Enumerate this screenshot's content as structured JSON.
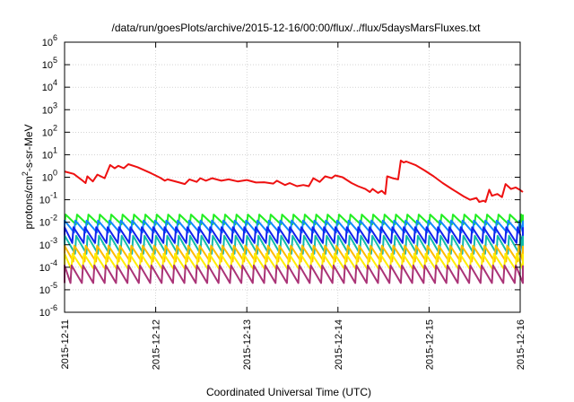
{
  "chart_data": {
    "type": "line",
    "title": "/data/run/goesPlots/archive/2015-12-16/00:00/flux/../flux/5daysMarsFluxes.txt",
    "xlabel": "Coordinated Universal Time (UTC)",
    "ylabel_base": "protons/cm",
    "ylabel_sup": "2",
    "ylabel_rest": "-s-sr-MeV",
    "y_scale": "log",
    "ylim": [
      1e-06,
      1000000.0
    ],
    "y_ticks": [
      {
        "base": "10",
        "exp": "-6"
      },
      {
        "base": "10",
        "exp": "-5"
      },
      {
        "base": "10",
        "exp": "-4"
      },
      {
        "base": "10",
        "exp": "-3"
      },
      {
        "base": "10",
        "exp": "-2"
      },
      {
        "base": "10",
        "exp": "-1"
      },
      {
        "base": "10",
        "exp": "0"
      },
      {
        "base": "10",
        "exp": "1"
      },
      {
        "base": "10",
        "exp": "2"
      },
      {
        "base": "10",
        "exp": "3"
      },
      {
        "base": "10",
        "exp": "4"
      },
      {
        "base": "10",
        "exp": "5"
      },
      {
        "base": "10",
        "exp": "6"
      }
    ],
    "x_start": "2015-12-11",
    "x_end_days": 5.03,
    "x_ticks": [
      "2015-12-11",
      "2015-12-12",
      "2015-12-13",
      "2015-12-14",
      "2015-12-15",
      "2015-12-16"
    ],
    "grid": true,
    "legend": "none",
    "series": [
      {
        "color": "#ee1111",
        "points": [
          [
            0.0,
            1.8
          ],
          [
            0.1,
            1.4
          ],
          [
            0.18,
            0.8
          ],
          [
            0.23,
            0.55
          ],
          [
            0.25,
            1.1
          ],
          [
            0.31,
            0.65
          ],
          [
            0.36,
            1.3
          ],
          [
            0.44,
            0.9
          ],
          [
            0.5,
            3.5
          ],
          [
            0.55,
            2.5
          ],
          [
            0.59,
            3.2
          ],
          [
            0.65,
            2.5
          ],
          [
            0.7,
            3.8
          ],
          [
            0.8,
            2.8
          ],
          [
            0.95,
            1.5
          ],
          [
            1.05,
            0.95
          ],
          [
            1.1,
            0.7
          ],
          [
            1.13,
            0.8
          ],
          [
            1.25,
            0.6
          ],
          [
            1.32,
            0.5
          ],
          [
            1.37,
            0.8
          ],
          [
            1.45,
            0.62
          ],
          [
            1.49,
            0.9
          ],
          [
            1.55,
            0.7
          ],
          [
            1.62,
            0.9
          ],
          [
            1.72,
            0.7
          ],
          [
            1.8,
            0.8
          ],
          [
            1.9,
            0.65
          ],
          [
            2.0,
            0.75
          ],
          [
            2.1,
            0.58
          ],
          [
            2.19,
            0.6
          ],
          [
            2.29,
            0.52
          ],
          [
            2.33,
            0.7
          ],
          [
            2.42,
            0.45
          ],
          [
            2.47,
            0.55
          ],
          [
            2.55,
            0.4
          ],
          [
            2.62,
            0.45
          ],
          [
            2.68,
            0.4
          ],
          [
            2.73,
            0.9
          ],
          [
            2.8,
            0.62
          ],
          [
            2.86,
            1.1
          ],
          [
            2.93,
            0.9
          ],
          [
            2.97,
            1.2
          ],
          [
            3.05,
            1.0
          ],
          [
            3.15,
            0.55
          ],
          [
            3.22,
            0.4
          ],
          [
            3.3,
            0.3
          ],
          [
            3.35,
            0.22
          ],
          [
            3.38,
            0.3
          ],
          [
            3.44,
            0.2
          ],
          [
            3.48,
            0.25
          ],
          [
            3.52,
            0.18
          ],
          [
            3.54,
            1.1
          ],
          [
            3.6,
            0.9
          ],
          [
            3.66,
            0.8
          ],
          [
            3.69,
            5.5
          ],
          [
            3.72,
            4.5
          ],
          [
            3.75,
            5.0
          ],
          [
            3.85,
            3.5
          ],
          [
            3.95,
            2.0
          ],
          [
            4.05,
            1.1
          ],
          [
            4.15,
            0.55
          ],
          [
            4.25,
            0.3
          ],
          [
            4.38,
            0.14
          ],
          [
            4.45,
            0.1
          ],
          [
            4.52,
            0.12
          ],
          [
            4.55,
            0.08
          ],
          [
            4.6,
            0.09
          ],
          [
            4.62,
            0.08
          ],
          [
            4.66,
            0.28
          ],
          [
            4.69,
            0.15
          ],
          [
            4.75,
            0.18
          ],
          [
            4.8,
            0.13
          ],
          [
            4.84,
            0.5
          ],
          [
            4.9,
            0.3
          ],
          [
            4.95,
            0.35
          ],
          [
            5.0,
            0.27
          ],
          [
            5.03,
            0.22
          ]
        ]
      },
      {
        "color": "#22ee22",
        "pattern": {
          "lo": 0.008,
          "hi": 0.022,
          "period": 0.125,
          "offset": 0.0
        }
      },
      {
        "color": "#1188ff",
        "pattern": {
          "lo": 0.0035,
          "hi": 0.012,
          "period": 0.125,
          "offset": 0.02
        }
      },
      {
        "color": "#1122ee",
        "pattern": {
          "lo": 0.0012,
          "hi": 0.006,
          "period": 0.125,
          "offset": 0.04
        }
      },
      {
        "color": "#11bbaa",
        "pattern": {
          "lo": 0.0004,
          "hi": 0.0025,
          "period": 0.125,
          "offset": 0.01
        }
      },
      {
        "color": "#ffbb00",
        "pattern": {
          "lo": 0.00018,
          "hi": 0.0009,
          "period": 0.125,
          "offset": 0.03
        }
      },
      {
        "color": "#ffee00",
        "pattern": {
          "lo": 8e-05,
          "hi": 0.0004,
          "period": 0.125,
          "offset": 0.05
        }
      },
      {
        "color": "#aa3377",
        "pattern": {
          "lo": 2e-05,
          "hi": 0.00012,
          "period": 0.125,
          "offset": 0.06
        }
      }
    ]
  }
}
